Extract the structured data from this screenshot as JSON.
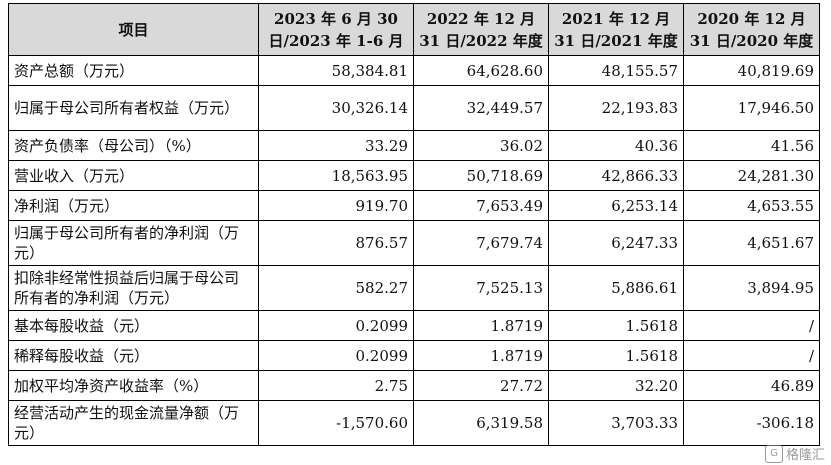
{
  "table": {
    "headers": [
      "项目",
      "2023 年 6 月 30 日/2023 年 1-6 月",
      "2022 年 12 月 31 日/2022 年度",
      "2021 年 12 月 31 日/2021 年度",
      "2020 年 12 月 31 日/2020 年度"
    ],
    "rows": [
      {
        "label": "资产总额（万元）",
        "values": [
          "58,384.81",
          "64,628.60",
          "48,155.57",
          "40,819.69"
        ]
      },
      {
        "label": "归属于母公司所有者权益（万元）",
        "values": [
          "30,326.14",
          "32,449.57",
          "22,193.83",
          "17,946.50"
        ]
      },
      {
        "label": "资产负债率（母公司）（%）",
        "values": [
          "33.29",
          "36.02",
          "40.36",
          "41.56"
        ]
      },
      {
        "label": "营业收入（万元）",
        "values": [
          "18,563.95",
          "50,718.69",
          "42,866.33",
          "24,281.30"
        ]
      },
      {
        "label": "净利润（万元）",
        "values": [
          "919.70",
          "7,653.49",
          "6,253.14",
          "4,653.55"
        ]
      },
      {
        "label": "归属于母公司所有者的净利润（万元）",
        "values": [
          "876.57",
          "7,679.74",
          "6,247.33",
          "4,651.67"
        ]
      },
      {
        "label": "扣除非经常性损益后归属于母公司所有者的净利润（万元）",
        "values": [
          "582.27",
          "7,525.13",
          "5,886.61",
          "3,894.95"
        ]
      },
      {
        "label": "基本每股收益（元）",
        "values": [
          "0.2099",
          "1.8719",
          "1.5618",
          "/"
        ]
      },
      {
        "label": "稀释每股收益（元）",
        "values": [
          "0.2099",
          "1.8719",
          "1.5618",
          "/"
        ]
      },
      {
        "label": "加权平均净资产收益率（%）",
        "values": [
          "2.75",
          "27.72",
          "32.20",
          "46.89"
        ]
      },
      {
        "label": "经营活动产生的现金流量净额（万元）",
        "values": [
          "-1,570.60",
          "6,319.58",
          "3,703.33",
          "-306.18"
        ]
      }
    ]
  },
  "watermark": {
    "text": "格隆汇",
    "icon": "gelonghui-logo-icon"
  }
}
